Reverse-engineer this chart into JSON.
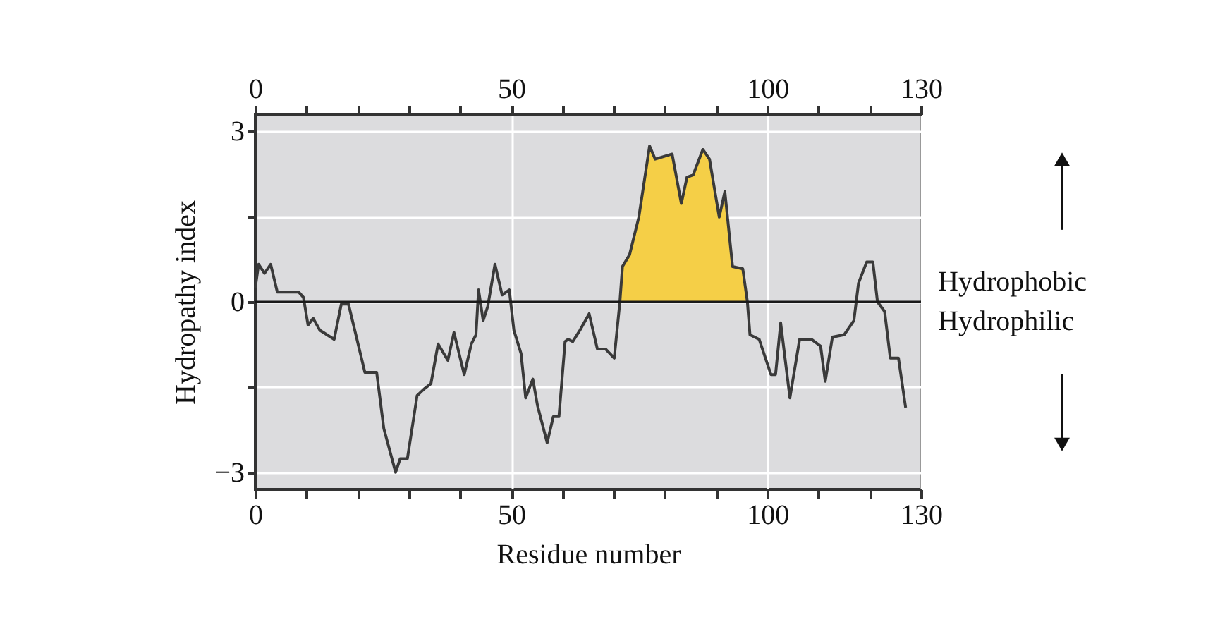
{
  "chart_data": {
    "type": "line",
    "xlabel": "Residue number",
    "ylabel": "Hydropathy index",
    "xlim": [
      0,
      130
    ],
    "ylim": [
      -3.3,
      3.3
    ],
    "xticks": [
      0,
      {
        "value": 10,
        "label": null
      },
      {
        "value": 20,
        "label": null
      },
      {
        "value": 30,
        "label": null
      },
      {
        "value": 40,
        "label": null
      },
      50,
      {
        "value": 60,
        "label": null
      },
      {
        "value": 70,
        "label": null
      },
      {
        "value": 80,
        "label": null
      },
      {
        "value": 90,
        "label": null
      },
      100,
      {
        "value": 110,
        "label": null
      },
      {
        "value": 120,
        "label": null
      },
      130
    ],
    "x2lim": [
      0,
      130
    ],
    "x2ticks": [
      0,
      {
        "value": 10,
        "label": null
      },
      {
        "value": 20,
        "label": null
      },
      {
        "value": 30,
        "label": null
      },
      {
        "value": 40,
        "label": null
      },
      50,
      {
        "value": 60,
        "label": null
      },
      {
        "value": 70,
        "label": null
      },
      {
        "value": 80,
        "label": null
      },
      {
        "value": 90,
        "label": null
      },
      100,
      {
        "value": 110,
        "label": null
      },
      {
        "value": 120,
        "label": null
      },
      130
    ],
    "yticks": [
      -3,
      {
        "value": -1.5,
        "label": null
      },
      0,
      {
        "value": 1.5,
        "label": null
      },
      3
    ],
    "grid": true,
    "marker": "none",
    "line_style": "solid",
    "ref_lines": [
      {
        "axis": "y",
        "value": 0,
        "label": null,
        "color": "#1a1a1a"
      }
    ],
    "annotations": [
      "Hydrophobic",
      "Hydrophilic"
    ],
    "series": [
      {
        "type": "area",
        "color": "#f5cf47",
        "x": [
          71.2,
          71.7,
          73.1,
          74.9,
          77,
          78.1,
          81.4,
          83.2,
          84.3,
          85.5,
          87.4,
          88.7,
          90.6,
          91.7,
          93.2,
          95.2,
          96.1
        ],
        "values": [
          0,
          0.62,
          0.83,
          1.49,
          2.74,
          2.51,
          2.6,
          1.73,
          2.19,
          2.23,
          2.68,
          2.51,
          1.49,
          1.94,
          0.62,
          0.58,
          0
        ]
      },
      {
        "color": "#3a3a3a",
        "x": [
          0,
          0.65,
          1.8,
          3,
          4.3,
          8.5,
          9.4,
          10.3,
          11.3,
          12.6,
          15.4,
          16.8,
          18.2,
          21.4,
          23.7,
          25.1,
          27.4,
          28.3,
          29.7,
          31.6,
          33,
          34.3,
          35.7,
          37.6,
          38.8,
          40.8,
          42.2,
          43.1,
          43.6,
          44.5,
          45.4,
          46.8,
          48.2,
          49.6,
          50.5,
          51.9,
          52.8,
          54.2,
          55.1,
          57,
          58.2,
          59.3,
          60.5,
          61.1,
          62,
          63.4,
          65.2,
          66.8,
          68.4,
          70.1,
          71.2,
          71.7,
          73.1,
          74.9,
          77,
          78.1,
          81.4,
          83.2,
          84.3,
          85.5,
          87.4,
          88.7,
          90.6,
          91.7,
          93.2,
          95.2,
          96.1,
          96.6,
          98.4,
          100.7,
          101.6,
          102.6,
          104.4,
          106.3,
          108.6,
          110.4,
          111.3,
          112.7,
          115,
          116.9,
          117.8,
          119.4,
          120.6,
          121.5,
          122.9,
          124,
          125.6,
          127
        ],
        "values": [
          0.25,
          0.66,
          0.5,
          0.66,
          0.17,
          0.17,
          0.08,
          -0.41,
          -0.29,
          -0.5,
          -0.66,
          -0.04,
          -0.04,
          -1.24,
          -1.24,
          -2.23,
          -3.0,
          -2.76,
          -2.76,
          -1.65,
          -1.53,
          -1.44,
          -0.74,
          -1.03,
          -0.54,
          -1.28,
          -0.74,
          -0.58,
          0.21,
          -0.33,
          -0.08,
          0.66,
          0.12,
          0.21,
          -0.5,
          -0.91,
          -1.69,
          -1.36,
          -1.82,
          -2.48,
          -2.02,
          -2.02,
          -0.7,
          -0.66,
          -0.7,
          -0.5,
          -0.21,
          -0.83,
          -0.83,
          -0.99,
          0,
          0.62,
          0.83,
          1.49,
          2.74,
          2.51,
          2.6,
          1.73,
          2.19,
          2.23,
          2.68,
          2.51,
          1.49,
          1.94,
          0.62,
          0.58,
          0,
          -0.58,
          -0.66,
          -1.28,
          -1.28,
          -0.37,
          -1.69,
          -0.66,
          -0.66,
          -0.78,
          -1.4,
          -0.62,
          -0.58,
          -0.33,
          0.33,
          0.7,
          0.7,
          0,
          -0.17,
          -0.99,
          -0.99,
          -1.86
        ]
      }
    ]
  }
}
